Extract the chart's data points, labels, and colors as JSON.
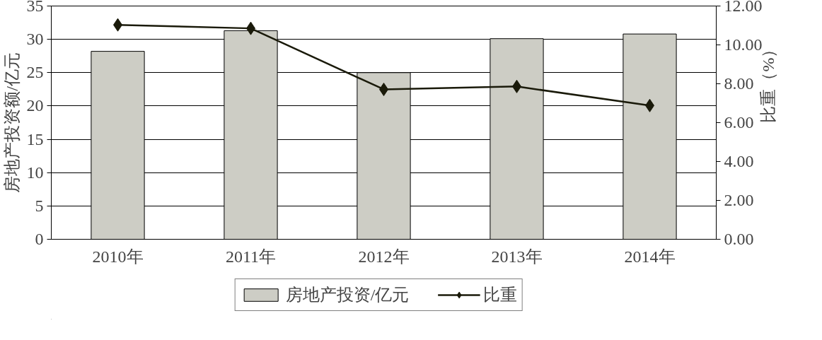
{
  "chart_data": {
    "type": "bar",
    "categories": [
      "2010年",
      "2011年",
      "2012年",
      "2013年",
      "2014年"
    ],
    "ylabel": "房地产投资额/亿元",
    "y2label": "比重（%）",
    "ylim": [
      0,
      35
    ],
    "yticks": [
      0,
      5,
      10,
      15,
      20,
      25,
      30,
      35
    ],
    "y2lim": [
      0,
      12
    ],
    "y2ticks": [
      {
        "value": 0,
        "label": "0.00"
      },
      {
        "value": 2,
        "label": "2.00"
      },
      {
        "value": 4,
        "label": "4.00"
      },
      {
        "value": 6,
        "label": "6.00"
      },
      {
        "value": 8,
        "label": "8.00"
      },
      {
        "value": 10,
        "label": "10.00"
      },
      {
        "value": 12,
        "label": "12.00"
      }
    ],
    "grid": "y",
    "legend": "bottom",
    "series": [
      {
        "name": "房地产投资/亿元",
        "color": "#cdcdc5",
        "values": [
          28.2,
          31.3,
          25.0,
          30.1,
          30.8
        ]
      },
      {
        "name": "比重",
        "type": "line",
        "axis": "y2",
        "color": "#1a1a0a",
        "marker": "diamond",
        "values": [
          11.03,
          10.85,
          7.71,
          7.86,
          6.88
        ]
      }
    ]
  }
}
